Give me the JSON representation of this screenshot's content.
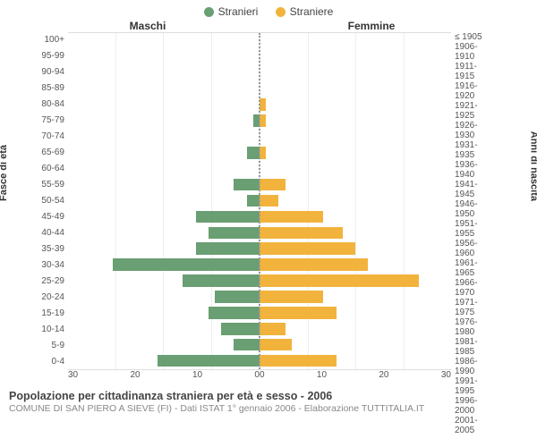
{
  "legend": {
    "male": {
      "label": "Stranieri",
      "color": "#6a9e73"
    },
    "female": {
      "label": "Straniere",
      "color": "#f2b33d"
    }
  },
  "headers": {
    "male": "Maschi",
    "female": "Femmine"
  },
  "axis_labels": {
    "left": "Fasce di età",
    "right": "Anni di nascita"
  },
  "chart": {
    "type": "population-pyramid",
    "xmax": 30,
    "xticks": [
      0,
      10,
      20,
      30
    ],
    "gridline_color": "#eeeeee",
    "centerline_color": "#999999",
    "background_color": "#ffffff",
    "bar_height_pct": 76,
    "age_labels": [
      "100+",
      "95-99",
      "90-94",
      "85-89",
      "80-84",
      "75-79",
      "70-74",
      "65-69",
      "60-64",
      "55-59",
      "50-54",
      "45-49",
      "40-44",
      "35-39",
      "30-34",
      "25-29",
      "20-24",
      "15-19",
      "10-14",
      "5-9",
      "0-4"
    ],
    "birth_labels": [
      "≤ 1905",
      "1906-1910",
      "1911-1915",
      "1916-1920",
      "1921-1925",
      "1926-1930",
      "1931-1935",
      "1936-1940",
      "1941-1945",
      "1946-1950",
      "1951-1955",
      "1956-1960",
      "1961-1965",
      "1966-1970",
      "1971-1975",
      "1976-1980",
      "1981-1985",
      "1986-1990",
      "1991-1995",
      "1996-2000",
      "2001-2005"
    ],
    "male_values": [
      0,
      0,
      0,
      0,
      0,
      1,
      0,
      2,
      0,
      4,
      2,
      10,
      8,
      10,
      23,
      12,
      7,
      8,
      6,
      4,
      16
    ],
    "female_values": [
      0,
      0,
      0,
      0,
      1,
      1,
      0,
      1,
      0,
      4,
      3,
      10,
      13,
      15,
      17,
      25,
      10,
      12,
      4,
      5,
      12
    ]
  },
  "footer": {
    "title": "Popolazione per cittadinanza straniera per età e sesso - 2006",
    "subtitle": "COMUNE DI SAN PIERO A SIEVE (FI) - Dati ISTAT 1° gennaio 2006 - Elaborazione TUTTITALIA.IT"
  },
  "typography": {
    "legend_fontsize": 12,
    "header_fontsize": 12,
    "tick_fontsize": 10,
    "title_fontsize": 12.5,
    "subtitle_fontsize": 10.5,
    "font_family": "Arial"
  }
}
